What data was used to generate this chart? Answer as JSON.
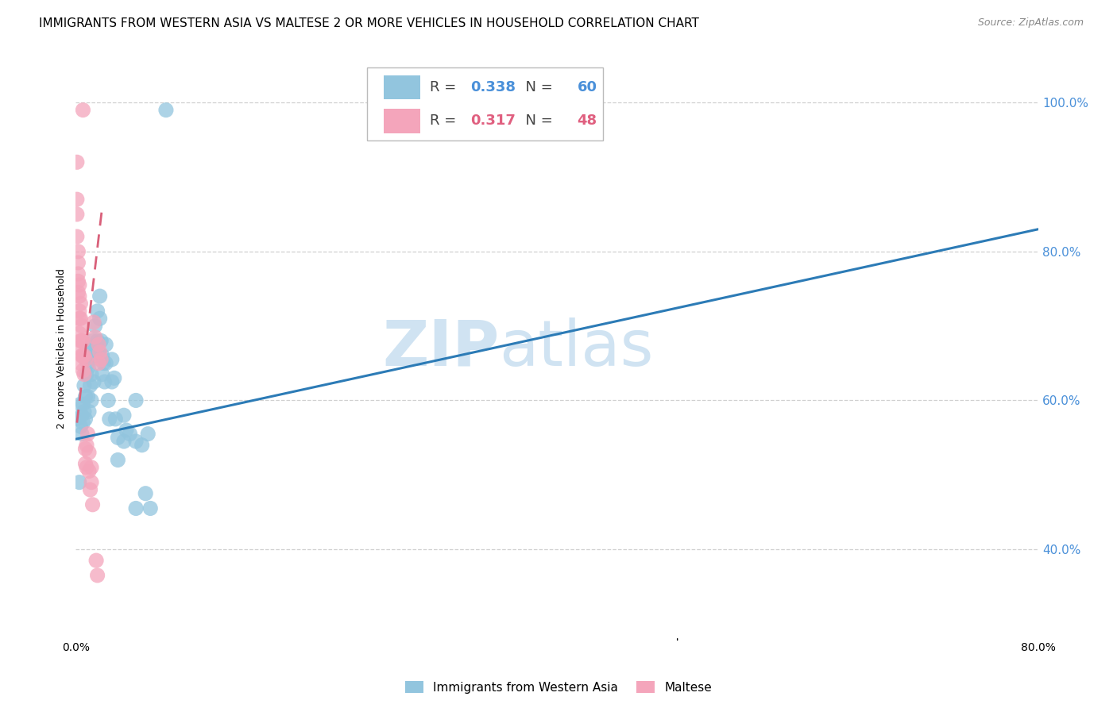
{
  "title": "IMMIGRANTS FROM WESTERN ASIA VS MALTESE 2 OR MORE VEHICLES IN HOUSEHOLD CORRELATION CHART",
  "source": "Source: ZipAtlas.com",
  "ylabel_left": "2 or more Vehicles in Household",
  "blue_R": "0.338",
  "blue_N": "60",
  "pink_R": "0.317",
  "pink_N": "48",
  "blue_color": "#92c5de",
  "pink_color": "#f4a5bb",
  "blue_line_color": "#2c7bb6",
  "pink_line_color": "#d9607a",
  "blue_scatter": [
    [
      0.002,
      0.575
    ],
    [
      0.003,
      0.49
    ],
    [
      0.004,
      0.595
    ],
    [
      0.004,
      0.565
    ],
    [
      0.005,
      0.58
    ],
    [
      0.005,
      0.555
    ],
    [
      0.006,
      0.595
    ],
    [
      0.006,
      0.57
    ],
    [
      0.007,
      0.62
    ],
    [
      0.007,
      0.585
    ],
    [
      0.008,
      0.605
    ],
    [
      0.008,
      0.575
    ],
    [
      0.009,
      0.66
    ],
    [
      0.009,
      0.635
    ],
    [
      0.01,
      0.65
    ],
    [
      0.01,
      0.605
    ],
    [
      0.011,
      0.645
    ],
    [
      0.011,
      0.585
    ],
    [
      0.012,
      0.67
    ],
    [
      0.012,
      0.62
    ],
    [
      0.013,
      0.635
    ],
    [
      0.013,
      0.6
    ],
    [
      0.014,
      0.68
    ],
    [
      0.015,
      0.665
    ],
    [
      0.015,
      0.625
    ],
    [
      0.016,
      0.7
    ],
    [
      0.016,
      0.67
    ],
    [
      0.017,
      0.66
    ],
    [
      0.018,
      0.72
    ],
    [
      0.018,
      0.68
    ],
    [
      0.019,
      0.665
    ],
    [
      0.02,
      0.74
    ],
    [
      0.02,
      0.71
    ],
    [
      0.021,
      0.68
    ],
    [
      0.022,
      0.66
    ],
    [
      0.022,
      0.635
    ],
    [
      0.023,
      0.65
    ],
    [
      0.024,
      0.625
    ],
    [
      0.025,
      0.675
    ],
    [
      0.025,
      0.65
    ],
    [
      0.027,
      0.6
    ],
    [
      0.028,
      0.575
    ],
    [
      0.03,
      0.655
    ],
    [
      0.03,
      0.625
    ],
    [
      0.032,
      0.63
    ],
    [
      0.033,
      0.575
    ],
    [
      0.035,
      0.55
    ],
    [
      0.035,
      0.52
    ],
    [
      0.04,
      0.58
    ],
    [
      0.04,
      0.545
    ],
    [
      0.042,
      0.56
    ],
    [
      0.045,
      0.555
    ],
    [
      0.05,
      0.6
    ],
    [
      0.05,
      0.545
    ],
    [
      0.055,
      0.54
    ],
    [
      0.06,
      0.555
    ],
    [
      0.05,
      0.455
    ],
    [
      0.058,
      0.475
    ],
    [
      0.062,
      0.455
    ],
    [
      0.075,
      0.99
    ]
  ],
  "pink_scatter": [
    [
      0.001,
      0.92
    ],
    [
      0.001,
      0.87
    ],
    [
      0.001,
      0.85
    ],
    [
      0.001,
      0.82
    ],
    [
      0.002,
      0.8
    ],
    [
      0.002,
      0.785
    ],
    [
      0.002,
      0.77
    ],
    [
      0.002,
      0.76
    ],
    [
      0.002,
      0.745
    ],
    [
      0.003,
      0.755
    ],
    [
      0.003,
      0.74
    ],
    [
      0.003,
      0.72
    ],
    [
      0.003,
      0.71
    ],
    [
      0.003,
      0.69
    ],
    [
      0.003,
      0.67
    ],
    [
      0.004,
      0.73
    ],
    [
      0.004,
      0.71
    ],
    [
      0.004,
      0.68
    ],
    [
      0.004,
      0.65
    ],
    [
      0.005,
      0.7
    ],
    [
      0.005,
      0.68
    ],
    [
      0.005,
      0.66
    ],
    [
      0.006,
      0.68
    ],
    [
      0.006,
      0.66
    ],
    [
      0.006,
      0.64
    ],
    [
      0.007,
      0.66
    ],
    [
      0.007,
      0.635
    ],
    [
      0.008,
      0.655
    ],
    [
      0.008,
      0.535
    ],
    [
      0.008,
      0.515
    ],
    [
      0.009,
      0.54
    ],
    [
      0.009,
      0.51
    ],
    [
      0.01,
      0.555
    ],
    [
      0.011,
      0.53
    ],
    [
      0.011,
      0.505
    ],
    [
      0.012,
      0.48
    ],
    [
      0.013,
      0.51
    ],
    [
      0.013,
      0.49
    ],
    [
      0.014,
      0.46
    ],
    [
      0.015,
      0.705
    ],
    [
      0.016,
      0.685
    ],
    [
      0.017,
      0.385
    ],
    [
      0.018,
      0.365
    ],
    [
      0.02,
      0.665
    ],
    [
      0.021,
      0.655
    ],
    [
      0.006,
      0.99
    ],
    [
      0.019,
      0.675
    ],
    [
      0.019,
      0.65
    ]
  ],
  "blue_trend_x": [
    0.0,
    0.8
  ],
  "blue_trend_y": [
    0.548,
    0.83
  ],
  "pink_trend_x": [
    0.001,
    0.022
  ],
  "pink_trend_y": [
    0.57,
    0.86
  ],
  "xlim": [
    0,
    0.8
  ],
  "ylim": [
    0.28,
    1.06
  ],
  "yticks": [
    0.4,
    0.6,
    0.8,
    1.0
  ],
  "ytick_labels": [
    "40.0%",
    "60.0%",
    "80.0%",
    "100.0%"
  ],
  "xtick_vals": [
    0.0,
    0.1,
    0.2,
    0.3,
    0.4,
    0.5,
    0.6,
    0.7,
    0.8
  ],
  "xtick_labels": [
    "0.0%",
    "",
    "",
    "",
    "",
    "",
    "",
    "",
    "80.0%"
  ],
  "watermark_zip": "ZIP",
  "watermark_atlas": "atlas",
  "background_color": "#ffffff",
  "grid_color": "#d0d0d0",
  "title_fontsize": 11,
  "axis_label_fontsize": 9,
  "tick_fontsize": 10,
  "right_axis_color": "#4a90d9",
  "pink_legend_color": "#e06080",
  "bottom_legend_labels": [
    "Immigrants from Western Asia",
    "Maltese"
  ]
}
